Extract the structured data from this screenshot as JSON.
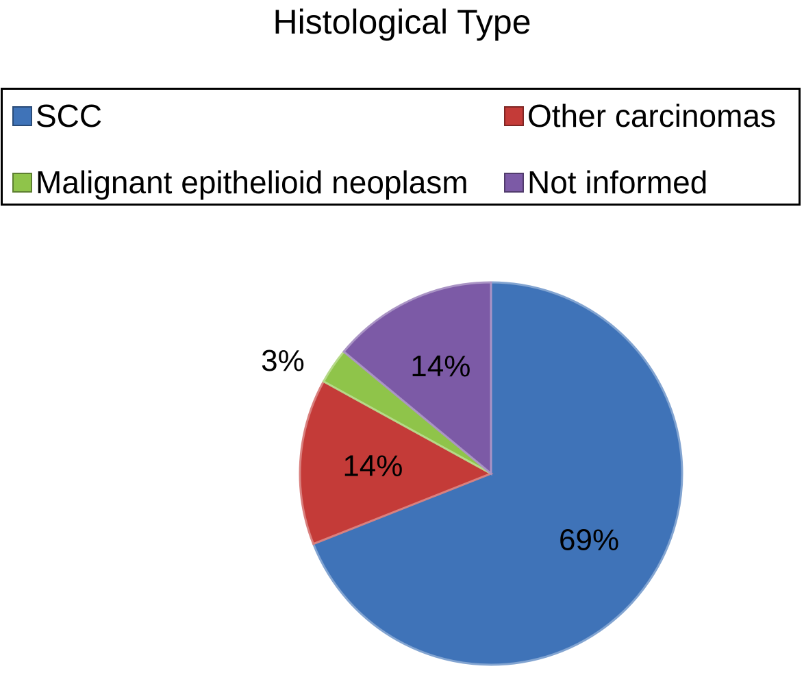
{
  "chart_data": {
    "type": "pie",
    "title": "Histological Type",
    "legend_position": "top",
    "slices": [
      {
        "name": "SCC",
        "value": 69,
        "label": "69%",
        "color": "#3f73b8"
      },
      {
        "name": "Other carcinomas",
        "value": 14,
        "label": "14%",
        "color": "#c43b38"
      },
      {
        "name": "Malignant epithelioid neoplasm",
        "value": 3,
        "label": "3%",
        "color": "#8fc44a"
      },
      {
        "name": "Not informed",
        "value": 14,
        "label": "14%",
        "color": "#7c5aa6"
      }
    ]
  }
}
